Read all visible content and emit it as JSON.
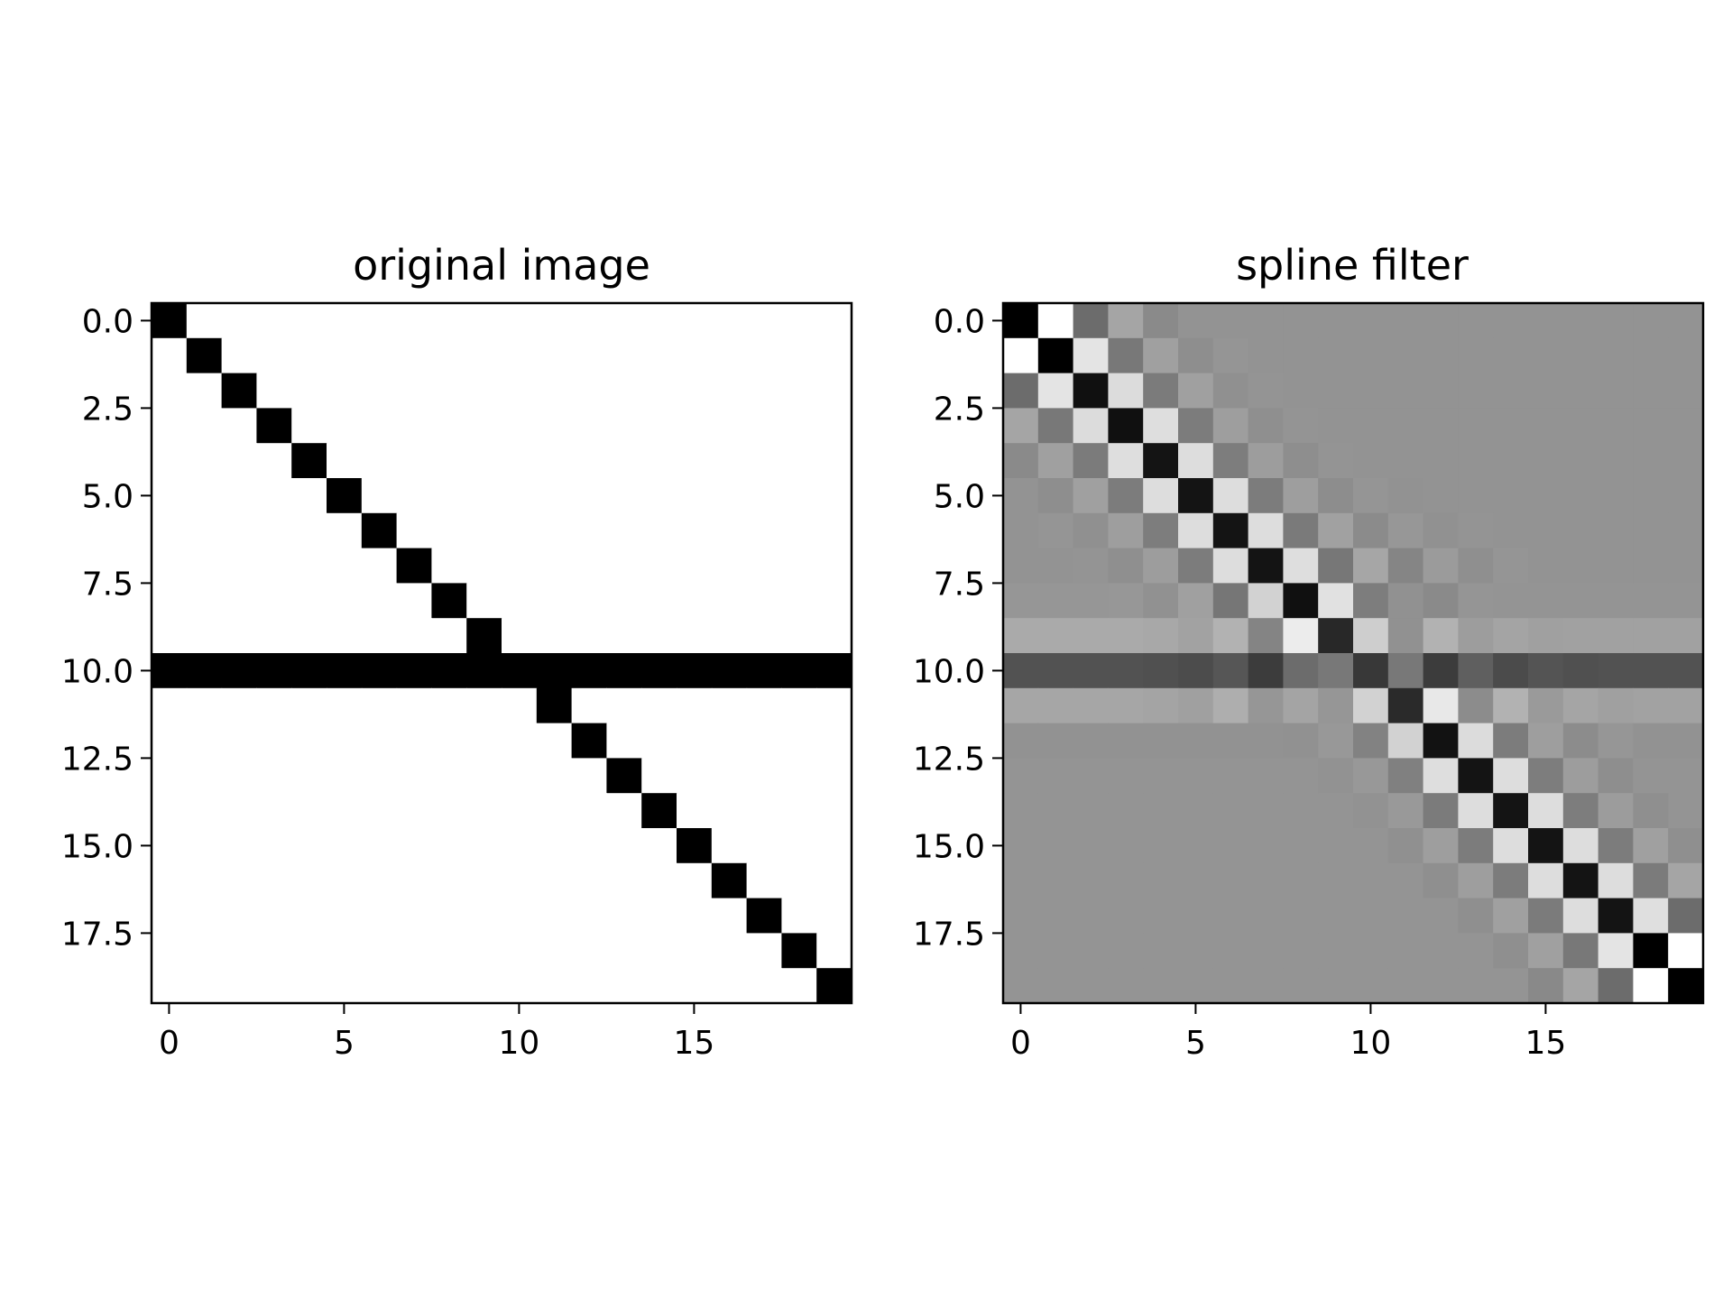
{
  "chart_data": [
    {
      "type": "heatmap",
      "title": "original image",
      "colormap": "gray",
      "shape": [
        20,
        20
      ],
      "x_ticks": [
        0,
        5,
        10,
        15
      ],
      "x_tick_labels": [
        "0",
        "5",
        "10",
        "15"
      ],
      "y_ticks": [
        0,
        2.5,
        5,
        7.5,
        10,
        12.5,
        15,
        17.5
      ],
      "y_tick_labels": [
        "0.0",
        "2.5",
        "5.0",
        "7.5",
        "10.0",
        "12.5",
        "15.0",
        "17.5"
      ],
      "values": [
        [
          0,
          1,
          1,
          1,
          1,
          1,
          1,
          1,
          1,
          1,
          1,
          1,
          1,
          1,
          1,
          1,
          1,
          1,
          1,
          1
        ],
        [
          1,
          0,
          1,
          1,
          1,
          1,
          1,
          1,
          1,
          1,
          1,
          1,
          1,
          1,
          1,
          1,
          1,
          1,
          1,
          1
        ],
        [
          1,
          1,
          0,
          1,
          1,
          1,
          1,
          1,
          1,
          1,
          1,
          1,
          1,
          1,
          1,
          1,
          1,
          1,
          1,
          1
        ],
        [
          1,
          1,
          1,
          0,
          1,
          1,
          1,
          1,
          1,
          1,
          1,
          1,
          1,
          1,
          1,
          1,
          1,
          1,
          1,
          1
        ],
        [
          1,
          1,
          1,
          1,
          0,
          1,
          1,
          1,
          1,
          1,
          1,
          1,
          1,
          1,
          1,
          1,
          1,
          1,
          1,
          1
        ],
        [
          1,
          1,
          1,
          1,
          1,
          0,
          1,
          1,
          1,
          1,
          1,
          1,
          1,
          1,
          1,
          1,
          1,
          1,
          1,
          1
        ],
        [
          1,
          1,
          1,
          1,
          1,
          1,
          0,
          1,
          1,
          1,
          1,
          1,
          1,
          1,
          1,
          1,
          1,
          1,
          1,
          1
        ],
        [
          1,
          1,
          1,
          1,
          1,
          1,
          1,
          0,
          1,
          1,
          1,
          1,
          1,
          1,
          1,
          1,
          1,
          1,
          1,
          1
        ],
        [
          1,
          1,
          1,
          1,
          1,
          1,
          1,
          1,
          0,
          1,
          1,
          1,
          1,
          1,
          1,
          1,
          1,
          1,
          1,
          1
        ],
        [
          1,
          1,
          1,
          1,
          1,
          1,
          1,
          1,
          1,
          0,
          1,
          1,
          1,
          1,
          1,
          1,
          1,
          1,
          1,
          1
        ],
        [
          0,
          0,
          0,
          0,
          0,
          0,
          0,
          0,
          0,
          0,
          0,
          0,
          0,
          0,
          0,
          0,
          0,
          0,
          0,
          0
        ],
        [
          1,
          1,
          1,
          1,
          1,
          1,
          1,
          1,
          1,
          1,
          1,
          0,
          1,
          1,
          1,
          1,
          1,
          1,
          1,
          1
        ],
        [
          1,
          1,
          1,
          1,
          1,
          1,
          1,
          1,
          1,
          1,
          1,
          1,
          0,
          1,
          1,
          1,
          1,
          1,
          1,
          1
        ],
        [
          1,
          1,
          1,
          1,
          1,
          1,
          1,
          1,
          1,
          1,
          1,
          1,
          1,
          0,
          1,
          1,
          1,
          1,
          1,
          1
        ],
        [
          1,
          1,
          1,
          1,
          1,
          1,
          1,
          1,
          1,
          1,
          1,
          1,
          1,
          1,
          0,
          1,
          1,
          1,
          1,
          1
        ],
        [
          1,
          1,
          1,
          1,
          1,
          1,
          1,
          1,
          1,
          1,
          1,
          1,
          1,
          1,
          1,
          0,
          1,
          1,
          1,
          1
        ],
        [
          1,
          1,
          1,
          1,
          1,
          1,
          1,
          1,
          1,
          1,
          1,
          1,
          1,
          1,
          1,
          1,
          0,
          1,
          1,
          1
        ],
        [
          1,
          1,
          1,
          1,
          1,
          1,
          1,
          1,
          1,
          1,
          1,
          1,
          1,
          1,
          1,
          1,
          1,
          0,
          1,
          1
        ],
        [
          1,
          1,
          1,
          1,
          1,
          1,
          1,
          1,
          1,
          1,
          1,
          1,
          1,
          1,
          1,
          1,
          1,
          1,
          0,
          1
        ],
        [
          1,
          1,
          1,
          1,
          1,
          1,
          1,
          1,
          1,
          1,
          1,
          1,
          1,
          1,
          1,
          1,
          1,
          1,
          1,
          0
        ]
      ]
    },
    {
      "type": "heatmap",
      "title": "spline filter",
      "colormap": "gray",
      "shape": [
        20,
        20
      ],
      "x_ticks": [
        0,
        5,
        10,
        15
      ],
      "x_tick_labels": [
        "0",
        "5",
        "10",
        "15"
      ],
      "y_ticks": [
        0,
        2.5,
        5,
        7.5,
        10,
        12.5,
        15,
        17.5
      ],
      "y_tick_labels": [
        "0.0",
        "2.5",
        "5.0",
        "7.5",
        "10.0",
        "12.5",
        "15.0",
        "17.5"
      ],
      "values": [
        [
          0,
          255,
          108,
          165,
          138,
          147,
          147,
          147,
          147,
          147,
          147,
          147,
          147,
          147,
          147,
          147,
          147,
          147,
          147,
          147
        ],
        [
          255,
          0,
          228,
          120,
          160,
          142,
          149,
          147,
          147,
          147,
          147,
          147,
          147,
          147,
          147,
          147,
          147,
          147,
          147,
          147
        ],
        [
          108,
          228,
          16,
          220,
          123,
          160,
          144,
          148,
          147,
          147,
          147,
          147,
          147,
          147,
          147,
          147,
          147,
          147,
          147,
          147
        ],
        [
          165,
          120,
          220,
          16,
          222,
          124,
          158,
          143,
          148,
          147,
          147,
          147,
          147,
          147,
          147,
          147,
          147,
          147,
          147,
          147
        ],
        [
          138,
          160,
          123,
          222,
          20,
          221,
          125,
          157,
          142,
          148,
          147,
          147,
          147,
          147,
          147,
          147,
          147,
          147,
          147,
          147
        ],
        [
          147,
          142,
          160,
          124,
          221,
          20,
          221,
          124,
          158,
          141,
          149,
          146,
          147,
          147,
          147,
          147,
          147,
          147,
          147,
          147
        ],
        [
          147,
          149,
          144,
          158,
          125,
          221,
          20,
          221,
          122,
          161,
          139,
          151,
          145,
          148,
          147,
          147,
          147,
          147,
          147,
          147
        ],
        [
          147,
          147,
          148,
          143,
          157,
          124,
          221,
          20,
          222,
          119,
          166,
          133,
          155,
          143,
          149,
          147,
          147,
          147,
          147,
          147
        ],
        [
          150,
          150,
          150,
          151,
          145,
          160,
          118,
          210,
          16,
          225,
          125,
          145,
          138,
          149,
          148,
          148,
          148,
          148,
          148,
          148
        ],
        [
          170,
          170,
          170,
          170,
          168,
          162,
          178,
          132,
          236,
          40,
          206,
          145,
          178,
          157,
          164,
          160,
          161,
          161,
          161,
          161
        ],
        [
          82,
          82,
          82,
          82,
          80,
          76,
          86,
          60,
          108,
          120,
          56,
          120,
          60,
          95,
          75,
          84,
          80,
          82,
          82,
          82
        ],
        [
          166,
          166,
          166,
          166,
          164,
          160,
          174,
          150,
          164,
          150,
          210,
          42,
          232,
          140,
          178,
          154,
          165,
          160,
          162,
          162
        ],
        [
          146,
          146,
          146,
          146,
          146,
          146,
          146,
          146,
          145,
          152,
          130,
          210,
          18,
          220,
          124,
          158,
          140,
          150,
          146,
          146
        ],
        [
          148,
          148,
          148,
          148,
          148,
          148,
          148,
          148,
          148,
          146,
          152,
          128,
          222,
          20,
          221,
          125,
          157,
          142,
          148,
          148
        ],
        [
          148,
          148,
          148,
          148,
          148,
          148,
          148,
          148,
          148,
          148,
          146,
          153,
          123,
          221,
          20,
          221,
          125,
          156,
          143,
          148
        ],
        [
          148,
          148,
          148,
          148,
          148,
          148,
          148,
          148,
          148,
          148,
          148,
          144,
          158,
          124,
          221,
          20,
          221,
          124,
          160,
          143
        ],
        [
          148,
          148,
          148,
          148,
          148,
          148,
          148,
          148,
          148,
          148,
          148,
          148,
          143,
          158,
          124,
          221,
          20,
          221,
          123,
          165
        ],
        [
          148,
          148,
          148,
          148,
          148,
          148,
          148,
          148,
          148,
          148,
          148,
          148,
          148,
          143,
          160,
          123,
          221,
          20,
          223,
          108
        ],
        [
          148,
          148,
          148,
          148,
          148,
          148,
          148,
          148,
          148,
          148,
          148,
          148,
          148,
          148,
          143,
          160,
          120,
          228,
          0,
          255
        ],
        [
          148,
          148,
          148,
          148,
          148,
          148,
          148,
          148,
          148,
          148,
          148,
          148,
          148,
          148,
          148,
          137,
          165,
          108,
          255,
          0
        ]
      ]
    }
  ]
}
